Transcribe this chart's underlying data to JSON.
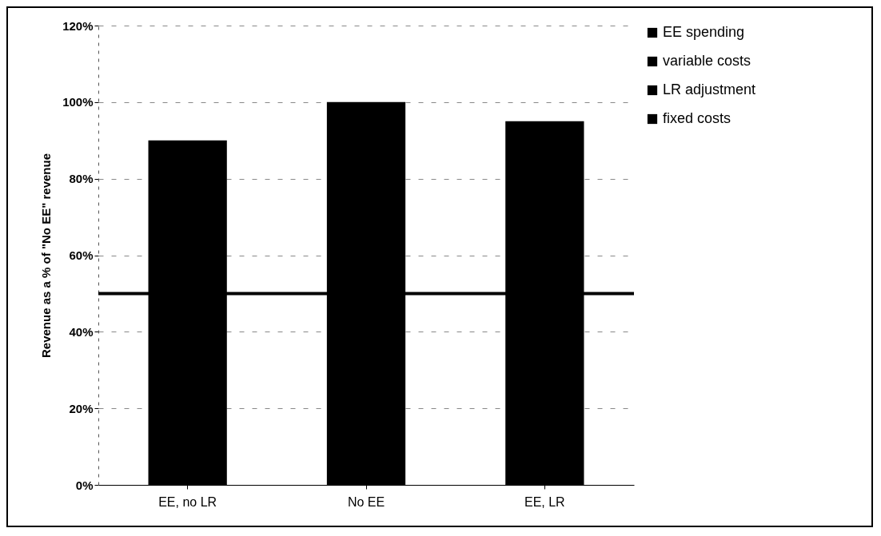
{
  "chart_data": {
    "type": "bar",
    "stacked": true,
    "ylabel": "Revenue as a % of \"No EE\" revenue",
    "categories": [
      "EE, no LR",
      "No EE",
      "EE, LR"
    ],
    "ylim": [
      0,
      120
    ],
    "yticks": [
      {
        "value": 0,
        "label": "0%"
      },
      {
        "value": 20,
        "label": "20%"
      },
      {
        "value": 40,
        "label": "40%"
      },
      {
        "value": 60,
        "label": "60%"
      },
      {
        "value": 80,
        "label": "80%"
      },
      {
        "value": 100,
        "label": "100%"
      },
      {
        "value": 120,
        "label": "120%"
      }
    ],
    "grid": "y",
    "legend": "right",
    "series": [
      {
        "name": "fixed costs",
        "color": "#000000",
        "values": [
          50,
          50,
          50
        ]
      },
      {
        "name": "LR adjustment",
        "color": "#000000",
        "values": [
          null,
          null,
          null
        ]
      },
      {
        "name": "variable costs",
        "color": "#000000",
        "values": [
          40,
          50,
          45
        ]
      },
      {
        "name": "EE spending",
        "color": "#000000",
        "values": [
          null,
          null,
          null
        ]
      }
    ],
    "ref_lines": [
      {
        "axis": "y",
        "value": 50,
        "color": "#000000"
      }
    ]
  }
}
